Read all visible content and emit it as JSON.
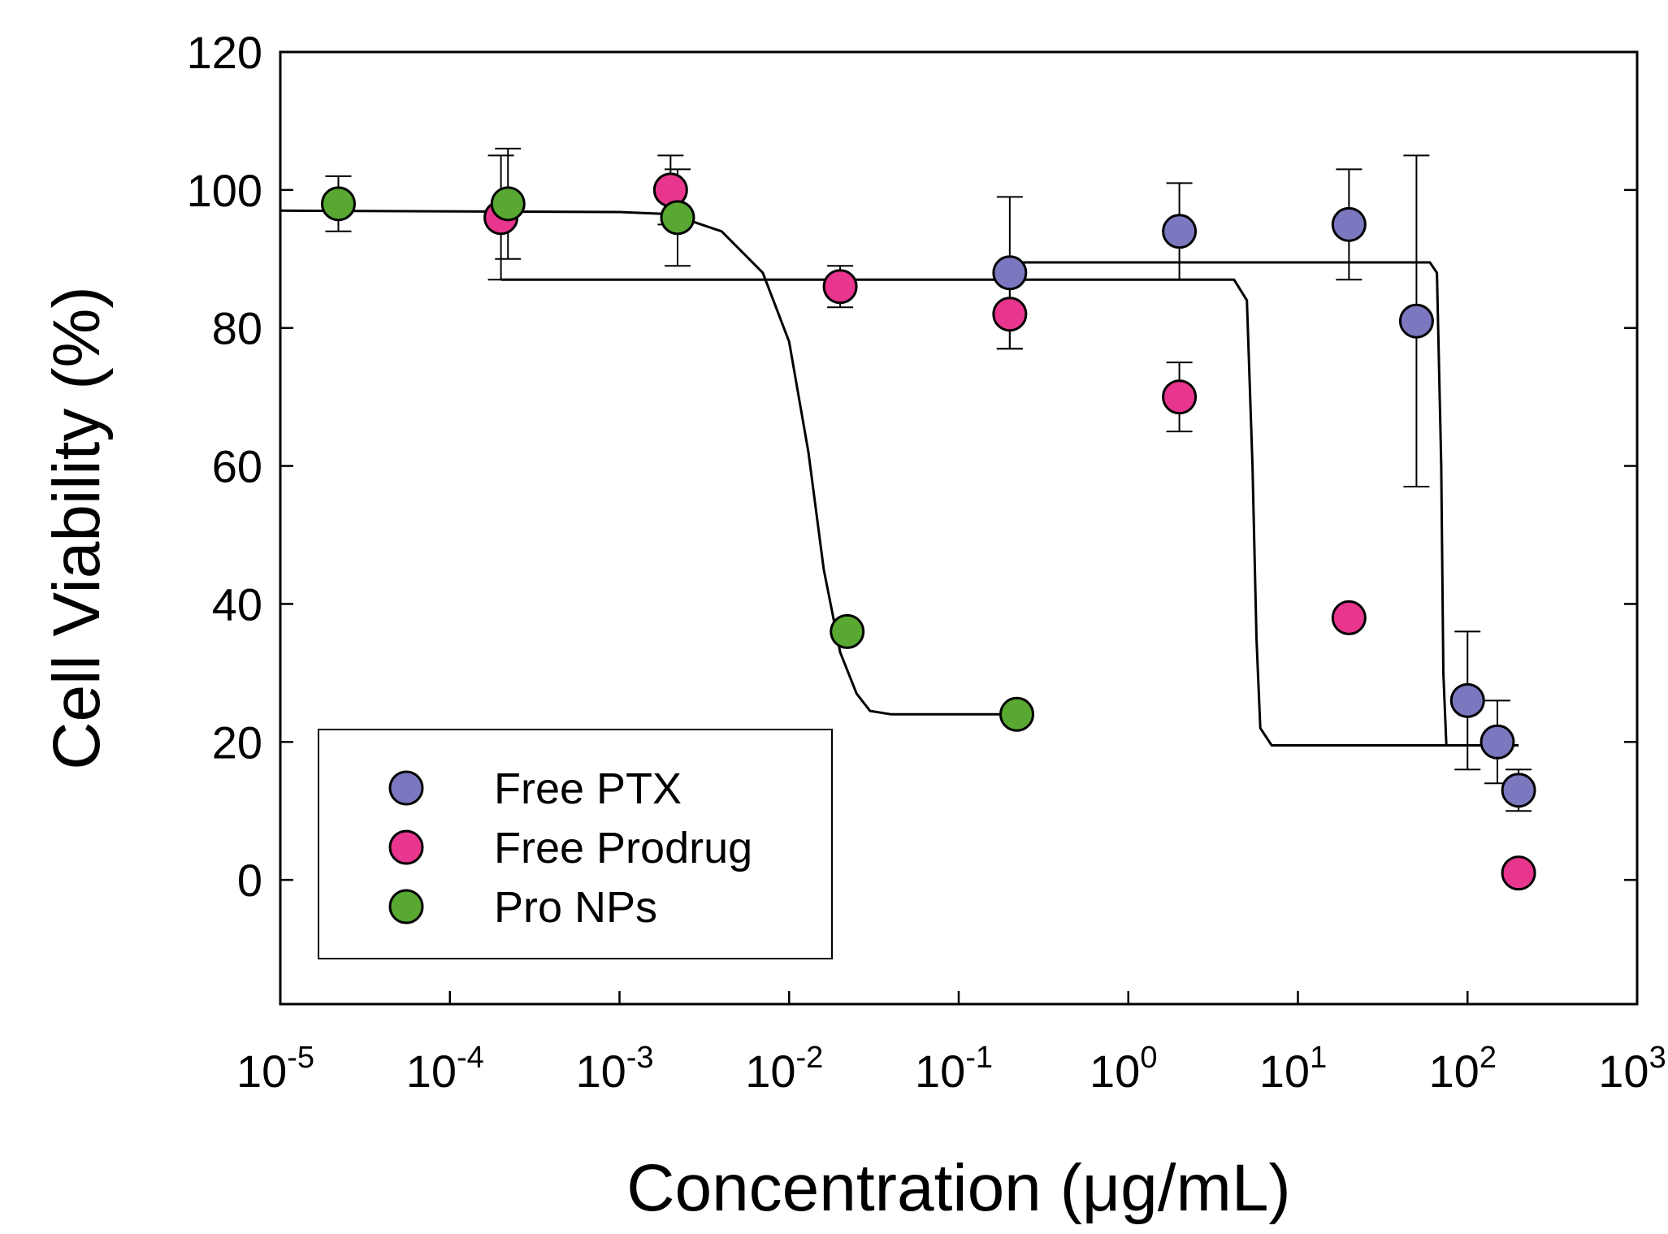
{
  "chart_data": {
    "type": "scatter",
    "title": "",
    "xlabel": "Concentration (μg/mL)",
    "ylabel": "Cell Viability (%)",
    "xscale": "log",
    "xlim_exponents": [
      -5,
      3
    ],
    "ylim": [
      -18,
      120
    ],
    "xtick_exponents": [
      -5,
      -4,
      -3,
      -2,
      -1,
      0,
      1,
      2,
      3
    ],
    "xtick_base": "10",
    "xtick_exponent_labels": [
      "-5",
      "-4",
      "-3",
      "-2",
      "-1",
      "0",
      "1",
      "2",
      "3"
    ],
    "ytick_values": [
      0,
      20,
      40,
      60,
      80,
      100,
      120
    ],
    "ytick_labels": [
      "0",
      "20",
      "40",
      "60",
      "80",
      "100",
      "120"
    ],
    "legend_position": "bottom-left",
    "series": [
      {
        "name": "Free PTX",
        "color": "#7b78c0",
        "points": [
          {
            "x": 0.2,
            "y": 88,
            "err": 11
          },
          {
            "x": 2,
            "y": 94,
            "err": 7
          },
          {
            "x": 20,
            "y": 95,
            "err": 8
          },
          {
            "x": 50,
            "y": 81,
            "err": 24
          },
          {
            "x": 100,
            "y": 26,
            "err": 10
          },
          {
            "x": 150,
            "y": 20,
            "err": 6
          },
          {
            "x": 200,
            "y": 13,
            "err": 3
          }
        ],
        "fit_curve": [
          [
            0.2,
            89.5
          ],
          [
            60,
            89.5
          ],
          [
            66,
            88
          ],
          [
            70,
            60
          ],
          [
            72,
            30
          ],
          [
            75,
            19.5
          ],
          [
            200,
            19.5
          ]
        ]
      },
      {
        "name": "Free Prodrug",
        "color": "#e8358d",
        "points": [
          {
            "x": 0.0002,
            "y": 96,
            "err": 9
          },
          {
            "x": 0.002,
            "y": 100,
            "err": 5
          },
          {
            "x": 0.02,
            "y": 86,
            "err": 3
          },
          {
            "x": 0.2,
            "y": 82,
            "err": 5
          },
          {
            "x": 2,
            "y": 70,
            "err": 5
          },
          {
            "x": 20,
            "y": 38,
            "err": 0
          },
          {
            "x": 200,
            "y": 1,
            "err": 0
          }
        ],
        "fit_curve": [
          [
            0.0002,
            87
          ],
          [
            4.2,
            87
          ],
          [
            5,
            84
          ],
          [
            5.4,
            60
          ],
          [
            5.7,
            35
          ],
          [
            6,
            22
          ],
          [
            7,
            19.5
          ],
          [
            200,
            19.5
          ]
        ]
      },
      {
        "name": "Pro NPs",
        "color": "#58a832",
        "points": [
          {
            "x": 2.2e-05,
            "y": 98,
            "err": 4
          },
          {
            "x": 0.00022,
            "y": 98,
            "err": 8
          },
          {
            "x": 0.0022,
            "y": 96,
            "err": 7
          },
          {
            "x": 0.022,
            "y": 36,
            "err": 0
          },
          {
            "x": 0.22,
            "y": 24,
            "err": 0
          }
        ],
        "fit_curve": [
          [
            1e-05,
            97
          ],
          [
            0.001,
            96.8
          ],
          [
            0.002,
            96.5
          ],
          [
            0.004,
            94
          ],
          [
            0.007,
            88
          ],
          [
            0.01,
            78
          ],
          [
            0.013,
            62
          ],
          [
            0.016,
            45
          ],
          [
            0.02,
            33
          ],
          [
            0.025,
            27
          ],
          [
            0.03,
            24.5
          ],
          [
            0.04,
            24
          ],
          [
            0.22,
            24
          ]
        ]
      }
    ]
  }
}
